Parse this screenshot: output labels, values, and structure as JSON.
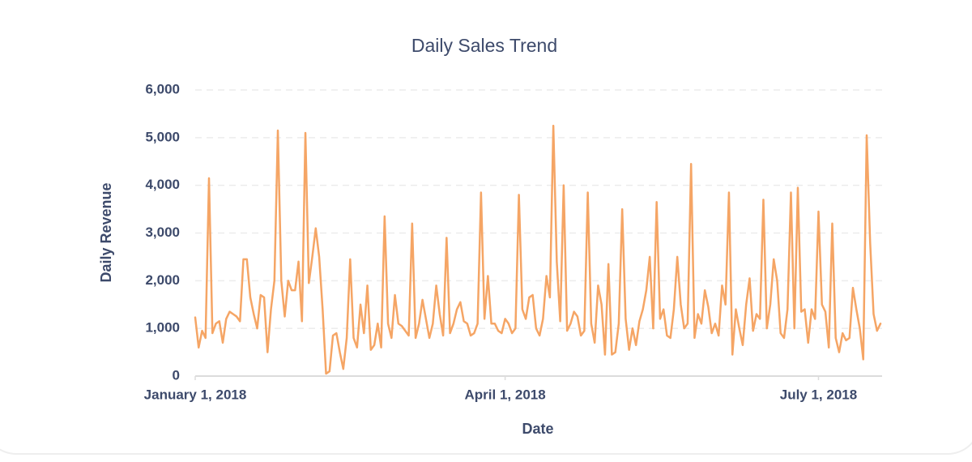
{
  "chart_data": {
    "type": "line",
    "title": "Daily Sales Trend",
    "x_label": "Date",
    "y_label": "Daily Revenue",
    "color": "#f5a565",
    "grid": true,
    "xlim": [
      "2018-01-01",
      "2018-07-19"
    ],
    "xticks": [
      {
        "value": "2018-01-01",
        "label": "January 1, 2018"
      },
      {
        "value": "2018-04-01",
        "label": "April 1, 2018"
      },
      {
        "value": "2018-07-01",
        "label": "July 1, 2018"
      }
    ],
    "ylim": [
      0,
      6000
    ],
    "yticks": [
      0,
      {
        "value": 1000,
        "label": "1,000"
      },
      {
        "value": 2000,
        "label": "2,000"
      },
      {
        "value": 3000,
        "label": "3,000"
      },
      {
        "value": 4000,
        "label": "4,000"
      },
      {
        "value": 5000,
        "label": "5,000"
      },
      {
        "value": 6000,
        "label": "6,000"
      }
    ],
    "x": [
      "2018-01-01",
      "2018-01-02",
      "2018-01-03",
      "2018-01-04",
      "2018-01-05",
      "2018-01-06",
      "2018-01-07",
      "2018-01-08",
      "2018-01-09",
      "2018-01-10",
      "2018-01-11",
      "2018-01-12",
      "2018-01-13",
      "2018-01-14",
      "2018-01-15",
      "2018-01-16",
      "2018-01-17",
      "2018-01-18",
      "2018-01-19",
      "2018-01-20",
      "2018-01-21",
      "2018-01-22",
      "2018-01-23",
      "2018-01-24",
      "2018-01-25",
      "2018-01-26",
      "2018-01-27",
      "2018-01-28",
      "2018-01-29",
      "2018-01-30",
      "2018-01-31",
      "2018-02-01",
      "2018-02-02",
      "2018-02-03",
      "2018-02-04",
      "2018-02-05",
      "2018-02-06",
      "2018-02-07",
      "2018-02-08",
      "2018-02-09",
      "2018-02-10",
      "2018-02-11",
      "2018-02-12",
      "2018-02-13",
      "2018-02-14",
      "2018-02-15",
      "2018-02-16",
      "2018-02-17",
      "2018-02-18",
      "2018-02-19",
      "2018-02-20",
      "2018-02-21",
      "2018-02-22",
      "2018-02-23",
      "2018-02-24",
      "2018-02-25",
      "2018-02-26",
      "2018-02-27",
      "2018-02-28",
      "2018-03-01",
      "2018-03-02",
      "2018-03-03",
      "2018-03-04",
      "2018-03-05",
      "2018-03-06",
      "2018-03-07",
      "2018-03-08",
      "2018-03-09",
      "2018-03-10",
      "2018-03-11",
      "2018-03-12",
      "2018-03-13",
      "2018-03-14",
      "2018-03-15",
      "2018-03-16",
      "2018-03-17",
      "2018-03-18",
      "2018-03-19",
      "2018-03-20",
      "2018-03-21",
      "2018-03-22",
      "2018-03-23",
      "2018-03-24",
      "2018-03-25",
      "2018-03-26",
      "2018-03-27",
      "2018-03-28",
      "2018-03-29",
      "2018-03-30",
      "2018-03-31",
      "2018-04-01",
      "2018-04-02",
      "2018-04-03",
      "2018-04-04",
      "2018-04-05",
      "2018-04-06",
      "2018-04-07",
      "2018-04-08",
      "2018-04-09",
      "2018-04-10",
      "2018-04-11",
      "2018-04-12",
      "2018-04-13",
      "2018-04-14",
      "2018-04-15",
      "2018-04-16",
      "2018-04-17",
      "2018-04-18",
      "2018-04-19",
      "2018-04-20",
      "2018-04-21",
      "2018-04-22",
      "2018-04-23",
      "2018-04-24",
      "2018-04-25",
      "2018-04-26",
      "2018-04-27",
      "2018-04-28",
      "2018-04-29",
      "2018-04-30",
      "2018-05-01",
      "2018-05-02",
      "2018-05-03",
      "2018-05-04",
      "2018-05-05",
      "2018-05-06",
      "2018-05-07",
      "2018-05-08",
      "2018-05-09",
      "2018-05-10",
      "2018-05-11",
      "2018-05-12",
      "2018-05-13",
      "2018-05-14",
      "2018-05-15",
      "2018-05-16",
      "2018-05-17",
      "2018-05-18",
      "2018-05-19",
      "2018-05-20",
      "2018-05-21",
      "2018-05-22",
      "2018-05-23",
      "2018-05-24",
      "2018-05-25",
      "2018-05-26",
      "2018-05-27",
      "2018-05-28",
      "2018-05-29",
      "2018-05-30",
      "2018-05-31",
      "2018-06-01",
      "2018-06-02",
      "2018-06-03",
      "2018-06-04",
      "2018-06-05",
      "2018-06-06",
      "2018-06-07",
      "2018-06-08",
      "2018-06-09",
      "2018-06-10",
      "2018-06-11",
      "2018-06-12",
      "2018-06-13",
      "2018-06-14",
      "2018-06-15",
      "2018-06-16",
      "2018-06-17",
      "2018-06-18",
      "2018-06-19",
      "2018-06-20",
      "2018-06-21",
      "2018-06-22",
      "2018-06-23",
      "2018-06-24",
      "2018-06-25",
      "2018-06-26",
      "2018-06-27",
      "2018-06-28",
      "2018-06-29",
      "2018-06-30",
      "2018-07-01",
      "2018-07-02",
      "2018-07-03",
      "2018-07-04",
      "2018-07-05",
      "2018-07-06",
      "2018-07-07",
      "2018-07-08",
      "2018-07-09",
      "2018-07-10",
      "2018-07-11",
      "2018-07-12",
      "2018-07-13",
      "2018-07-14",
      "2018-07-15",
      "2018-07-16",
      "2018-07-17",
      "2018-07-18",
      "2018-07-19"
    ],
    "values": [
      1230,
      600,
      950,
      800,
      4150,
      900,
      1100,
      1150,
      700,
      1200,
      1350,
      1300,
      1250,
      1150,
      2450,
      2450,
      1650,
      1300,
      1000,
      1700,
      1650,
      500,
      1400,
      2000,
      5150,
      2000,
      1250,
      2000,
      1800,
      1800,
      2400,
      1150,
      5100,
      1950,
      2500,
      3100,
      2500,
      1400,
      50,
      100,
      850,
      900,
      500,
      150,
      800,
      2450,
      800,
      600,
      1500,
      900,
      1900,
      550,
      650,
      1100,
      600,
      3350,
      1100,
      800,
      1700,
      1100,
      1050,
      950,
      850,
      3200,
      800,
      1100,
      1600,
      1200,
      800,
      1100,
      1900,
      1300,
      850,
      2900,
      900,
      1100,
      1400,
      1550,
      1150,
      1100,
      850,
      900,
      1100,
      3850,
      1200,
      2100,
      1100,
      1100,
      950,
      900,
      1200,
      1100,
      900,
      1000,
      3800,
      1400,
      1200,
      1650,
      1700,
      1000,
      850,
      1200,
      2100,
      1650,
      5250,
      2400,
      1150,
      4000,
      950,
      1100,
      1350,
      1250,
      850,
      950,
      3850,
      1100,
      700,
      1900,
      1500,
      450,
      2350,
      450,
      500,
      1100,
      3500,
      1200,
      550,
      1000,
      650,
      1150,
      1400,
      1800,
      2500,
      1000,
      3650,
      1200,
      1400,
      850,
      800,
      1400,
      2500,
      1500,
      1000,
      1100,
      4450,
      800,
      1300,
      1100,
      1800,
      1450,
      900,
      1100,
      850,
      1900,
      1500,
      3850,
      450,
      1400,
      1000,
      650,
      1500,
      2050,
      950,
      1300,
      1200,
      3700,
      1000,
      1500,
      2450,
      2000,
      900,
      800,
      1400,
      3850,
      1000,
      3950,
      1350,
      1400,
      700,
      1400,
      1200,
      3450,
      1500,
      1350,
      600,
      3200,
      800,
      500,
      900,
      750,
      800,
      1850,
      1400,
      1000,
      350,
      5050,
      2800,
      1300,
      950,
      1100
    ]
  }
}
